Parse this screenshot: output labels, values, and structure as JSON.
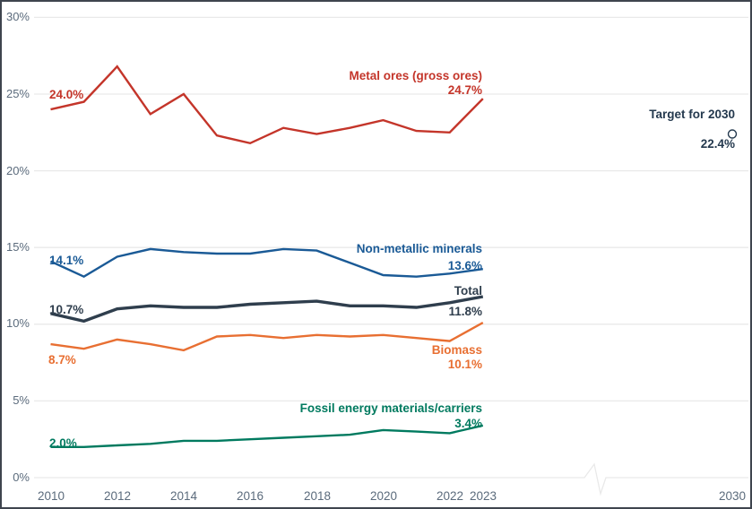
{
  "chart_data": {
    "type": "line",
    "title": "",
    "xlabel": "",
    "ylabel": "%",
    "ylim": [
      0,
      30
    ],
    "grid": "horizontal",
    "legend_position": "inline-labels",
    "axis_color": "#5b6b7c",
    "grid_color": "#e9e9e9",
    "axis_break_before_target": true,
    "x": [
      2010,
      2011,
      2012,
      2013,
      2014,
      2015,
      2016,
      2017,
      2018,
      2019,
      2020,
      2021,
      2022,
      2023
    ],
    "x_tick_labels": [
      "2010",
      "2012",
      "2014",
      "2016",
      "2018",
      "2020",
      "2022",
      "2023",
      "2030"
    ],
    "y_ticks": [
      "30%",
      "25%",
      "20%",
      "15%",
      "10%",
      "5%",
      "0%"
    ],
    "y_tick_values": [
      30,
      25,
      20,
      15,
      10,
      5,
      0
    ],
    "series": [
      {
        "name": "Metal ores (gross ores)",
        "color": "#c4352a",
        "thick": false,
        "start_label": "24.0%",
        "end_label": "24.7%",
        "values": [
          24.0,
          24.5,
          26.8,
          23.7,
          25.0,
          22.3,
          21.8,
          22.8,
          22.4,
          22.8,
          23.3,
          22.6,
          22.5,
          24.7
        ]
      },
      {
        "name": "Non-metallic minerals",
        "color": "#1a5a96",
        "thick": false,
        "start_label": "14.1%",
        "end_label": "13.6%",
        "values": [
          14.1,
          13.1,
          14.4,
          14.9,
          14.7,
          14.6,
          14.6,
          14.9,
          14.8,
          14.0,
          13.2,
          13.1,
          13.3,
          13.6
        ]
      },
      {
        "name": "Total",
        "color": "#2f3e4d",
        "thick": true,
        "start_label": "10.7%",
        "end_label": "11.8%",
        "values": [
          10.7,
          10.2,
          11.0,
          11.2,
          11.1,
          11.1,
          11.3,
          11.4,
          11.5,
          11.2,
          11.2,
          11.1,
          11.4,
          11.8
        ]
      },
      {
        "name": "Biomass",
        "color": "#e86f32",
        "thick": false,
        "start_label": "8.7%",
        "end_label": "10.1%",
        "values": [
          8.7,
          8.4,
          9.0,
          8.7,
          8.3,
          9.2,
          9.3,
          9.1,
          9.3,
          9.2,
          9.3,
          9.1,
          8.9,
          10.1
        ]
      },
      {
        "name": "Fossil energy materials/carriers",
        "color": "#007a5f",
        "thick": false,
        "start_label": "2.0%",
        "end_label": "3.4%",
        "values": [
          2.0,
          2.0,
          2.1,
          2.2,
          2.4,
          2.4,
          2.5,
          2.6,
          2.7,
          2.8,
          3.1,
          3.0,
          2.9,
          3.4
        ]
      }
    ],
    "target": {
      "label": "Target for 2030",
      "year": 2030,
      "value": 22.4,
      "value_label": "22.4%",
      "marker": "open-circle",
      "color": "#24394e"
    }
  }
}
